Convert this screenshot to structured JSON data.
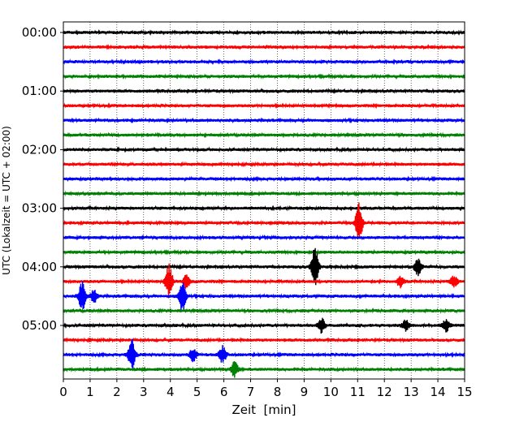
{
  "chart_data": {
    "type": "line",
    "title": "",
    "xlabel": "Zeit  [min]",
    "ylabel": "UTC (Lokalzeit = UTC + 02:00)",
    "xlim": [
      0,
      15
    ],
    "x_ticks": [
      "0",
      "1",
      "2",
      "3",
      "4",
      "5",
      "6",
      "7",
      "8",
      "9",
      "10",
      "11",
      "12",
      "13",
      "14",
      "15"
    ],
    "y_tick_labels": [
      "00:00",
      "01:00",
      "02:00",
      "03:00",
      "04:00",
      "05:00"
    ],
    "trace_interval_minutes": 15,
    "trace_count": 24,
    "trace_colors": [
      "#000000",
      "#ff0000",
      "#0000ff",
      "#008000"
    ],
    "grid": "vertical dotted at each minute",
    "legend": "none",
    "events": [
      {
        "trace": 13,
        "time_min": 11.05,
        "amplitude": 0.95
      },
      {
        "trace": 16,
        "time_min": 9.4,
        "amplitude": 1.0
      },
      {
        "trace": 16,
        "time_min": 13.25,
        "amplitude": 0.4
      },
      {
        "trace": 17,
        "time_min": 3.95,
        "amplitude": 0.8
      },
      {
        "trace": 17,
        "time_min": 4.6,
        "amplitude": 0.3
      },
      {
        "trace": 17,
        "time_min": 12.6,
        "amplitude": 0.25
      },
      {
        "trace": 17,
        "time_min": 14.6,
        "amplitude": 0.3
      },
      {
        "trace": 18,
        "time_min": 0.7,
        "amplitude": 0.7
      },
      {
        "trace": 18,
        "time_min": 4.45,
        "amplitude": 0.75
      },
      {
        "trace": 18,
        "time_min": 1.15,
        "amplitude": 0.3
      },
      {
        "trace": 20,
        "time_min": 9.65,
        "amplitude": 0.35
      },
      {
        "trace": 20,
        "time_min": 12.8,
        "amplitude": 0.25
      },
      {
        "trace": 20,
        "time_min": 14.3,
        "amplitude": 0.3
      },
      {
        "trace": 22,
        "time_min": 2.55,
        "amplitude": 0.75
      },
      {
        "trace": 22,
        "time_min": 4.85,
        "amplitude": 0.3
      },
      {
        "trace": 22,
        "time_min": 5.95,
        "amplitude": 0.4
      },
      {
        "trace": 23,
        "time_min": 6.4,
        "amplitude": 0.35
      }
    ]
  }
}
